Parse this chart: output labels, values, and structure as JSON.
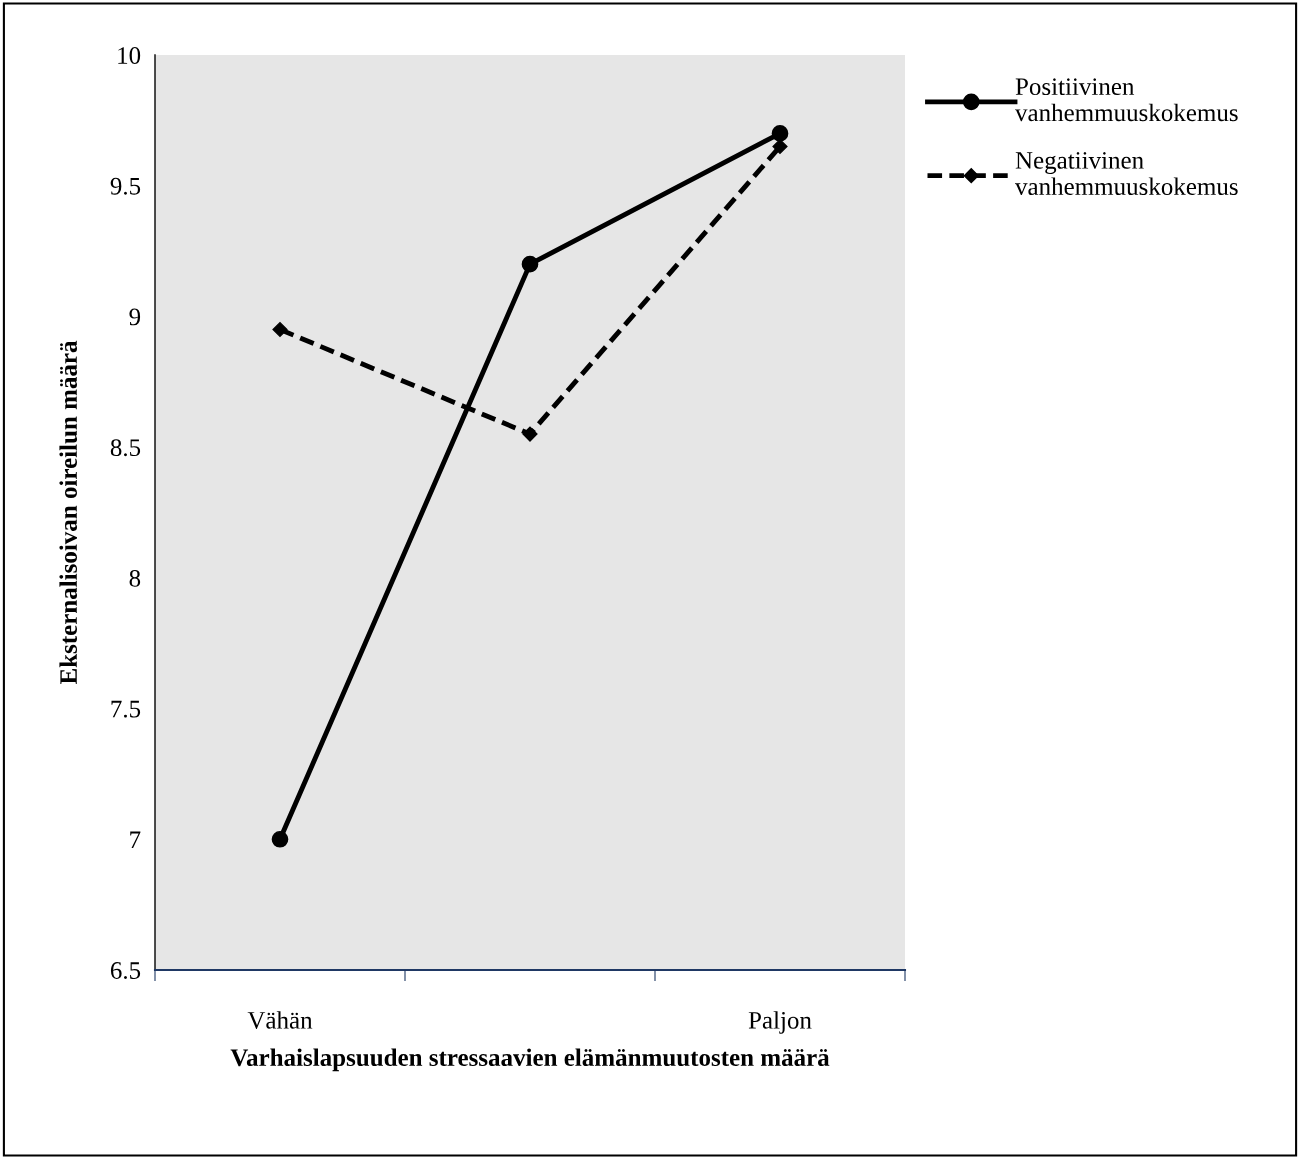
{
  "chart_data": {
    "type": "line",
    "xlabel": "Varhaislapsuuden stressaavien elämänmuutosten määrä",
    "ylabel": "Eksternalisoivan oireilun määrä",
    "categories": [
      "Vähän",
      null,
      "Paljon"
    ],
    "series": [
      {
        "name": "Positiivinen vanhemmuuskokemus",
        "color": "#000000",
        "values": [
          7.0,
          9.2,
          9.7
        ],
        "marker": "circle",
        "line_style": "solid"
      },
      {
        "name": "Negatiivinen vanhemmuuskokemus",
        "color": "#000000",
        "values": [
          8.95,
          8.55,
          9.65
        ],
        "marker": "diamond",
        "line_style": "dashed"
      }
    ],
    "ylim": [
      6.5,
      10
    ],
    "yticks": [
      6.5,
      7,
      7.5,
      8,
      8.5,
      9,
      9.5,
      10
    ],
    "grid": false,
    "legend": "top right"
  }
}
